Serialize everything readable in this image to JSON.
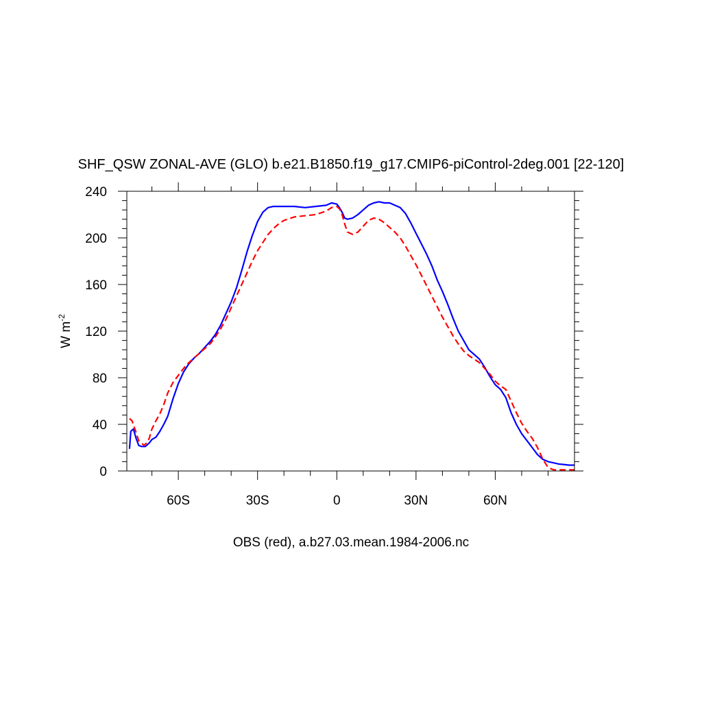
{
  "chart_data": {
    "type": "line",
    "title": "SHF_QSW ZONAL-AVE (GLO) b.e21.B1850.f19_g17.CMIP6-piControl-2deg.001 [22-120]",
    "subtitle": "OBS (red), a.b27.03.mean.1984-2006.nc",
    "ylabel_main": "W m",
    "ylabel_sup": "-2",
    "xlim": [
      -79.5,
      90
    ],
    "ylim": [
      0,
      240
    ],
    "x_ticks": [
      {
        "value": -60,
        "label": "60S"
      },
      {
        "value": -30,
        "label": "30S"
      },
      {
        "value": 0,
        "label": "0"
      },
      {
        "value": 30,
        "label": "30N"
      },
      {
        "value": 60,
        "label": "60N"
      }
    ],
    "x_minor_ticks": [
      -70,
      -50,
      -40,
      -20,
      -10,
      10,
      20,
      40,
      50,
      70,
      80
    ],
    "y_ticks": [
      {
        "value": 0,
        "label": "0"
      },
      {
        "value": 40,
        "label": "40"
      },
      {
        "value": 80,
        "label": "80"
      },
      {
        "value": 120,
        "label": "120"
      },
      {
        "value": 160,
        "label": "160"
      },
      {
        "value": 200,
        "label": "200"
      },
      {
        "value": 240,
        "label": "240"
      }
    ],
    "y_minor_step": 8,
    "series": [
      {
        "color": "#0000ff",
        "dash": "solid",
        "points": [
          [
            -78.5,
            19
          ],
          [
            -78,
            34
          ],
          [
            -77,
            36
          ],
          [
            -76,
            28
          ],
          [
            -75,
            22
          ],
          [
            -74,
            21
          ],
          [
            -72.5,
            21
          ],
          [
            -71,
            24
          ],
          [
            -70,
            27
          ],
          [
            -68.5,
            29
          ],
          [
            -67,
            34
          ],
          [
            -65.5,
            40
          ],
          [
            -64,
            47
          ],
          [
            -62,
            62
          ],
          [
            -60,
            75
          ],
          [
            -58,
            85
          ],
          [
            -56,
            92
          ],
          [
            -54,
            97
          ],
          [
            -52,
            101
          ],
          [
            -50,
            106
          ],
          [
            -48,
            111
          ],
          [
            -46,
            117
          ],
          [
            -44,
            125
          ],
          [
            -42,
            135
          ],
          [
            -40,
            145
          ],
          [
            -38,
            157
          ],
          [
            -36,
            172
          ],
          [
            -34,
            188
          ],
          [
            -32,
            202
          ],
          [
            -30,
            214
          ],
          [
            -28,
            222
          ],
          [
            -26,
            226
          ],
          [
            -24,
            227
          ],
          [
            -20,
            227
          ],
          [
            -16,
            227
          ],
          [
            -12,
            226
          ],
          [
            -8,
            227
          ],
          [
            -4,
            228
          ],
          [
            -2,
            230
          ],
          [
            0,
            229
          ],
          [
            1,
            226
          ],
          [
            2,
            222
          ],
          [
            3,
            217
          ],
          [
            4,
            216
          ],
          [
            6,
            217
          ],
          [
            8,
            220
          ],
          [
            10,
            224
          ],
          [
            12,
            228
          ],
          [
            14,
            230
          ],
          [
            16,
            231
          ],
          [
            18,
            230
          ],
          [
            20,
            230
          ],
          [
            22,
            228
          ],
          [
            24,
            226
          ],
          [
            26,
            221
          ],
          [
            28,
            213
          ],
          [
            30,
            204
          ],
          [
            32,
            195
          ],
          [
            34,
            186
          ],
          [
            36,
            176
          ],
          [
            38,
            164
          ],
          [
            40,
            154
          ],
          [
            42,
            143
          ],
          [
            44,
            131
          ],
          [
            46,
            120
          ],
          [
            48,
            112
          ],
          [
            50,
            104
          ],
          [
            52,
            100
          ],
          [
            54,
            96
          ],
          [
            56,
            89
          ],
          [
            58,
            81
          ],
          [
            60,
            74
          ],
          [
            62,
            70
          ],
          [
            64,
            63
          ],
          [
            66,
            50
          ],
          [
            68,
            40
          ],
          [
            70,
            32
          ],
          [
            72,
            26
          ],
          [
            74,
            20
          ],
          [
            76,
            14
          ],
          [
            78,
            10
          ],
          [
            80,
            8
          ],
          [
            82,
            7
          ],
          [
            84,
            6
          ],
          [
            86,
            5.5
          ],
          [
            88,
            5
          ],
          [
            90,
            5
          ]
        ]
      },
      {
        "color": "#ff0000",
        "dash": "dashed",
        "points": [
          [
            -78.5,
            45
          ],
          [
            -77.5,
            43
          ],
          [
            -76,
            33
          ],
          [
            -75,
            26
          ],
          [
            -74,
            24
          ],
          [
            -73,
            22
          ],
          [
            -72,
            24
          ],
          [
            -71,
            28
          ],
          [
            -70,
            36
          ],
          [
            -68.5,
            43
          ],
          [
            -67,
            49
          ],
          [
            -65.5,
            57
          ],
          [
            -64,
            67
          ],
          [
            -62,
            76
          ],
          [
            -60,
            82
          ],
          [
            -58,
            88
          ],
          [
            -56,
            93
          ],
          [
            -54,
            97
          ],
          [
            -52,
            101
          ],
          [
            -50,
            105
          ],
          [
            -48,
            109
          ],
          [
            -46,
            115
          ],
          [
            -44,
            122
          ],
          [
            -42,
            130
          ],
          [
            -40,
            140
          ],
          [
            -38,
            150
          ],
          [
            -36,
            160
          ],
          [
            -34,
            170
          ],
          [
            -32,
            180
          ],
          [
            -30,
            189
          ],
          [
            -28,
            196
          ],
          [
            -26,
            203
          ],
          [
            -24,
            208
          ],
          [
            -22,
            212
          ],
          [
            -20,
            215
          ],
          [
            -16,
            218
          ],
          [
            -12,
            219
          ],
          [
            -8,
            220
          ],
          [
            -4,
            223
          ],
          [
            -2,
            226
          ],
          [
            0,
            227
          ],
          [
            1,
            225
          ],
          [
            2,
            220
          ],
          [
            3,
            212
          ],
          [
            4,
            205
          ],
          [
            6,
            203
          ],
          [
            8,
            205
          ],
          [
            10,
            210
          ],
          [
            12,
            215
          ],
          [
            14,
            217
          ],
          [
            16,
            216
          ],
          [
            18,
            213
          ],
          [
            20,
            209
          ],
          [
            22,
            205
          ],
          [
            24,
            200
          ],
          [
            26,
            193
          ],
          [
            28,
            185
          ],
          [
            30,
            177
          ],
          [
            32,
            168
          ],
          [
            34,
            159
          ],
          [
            36,
            150
          ],
          [
            38,
            141
          ],
          [
            40,
            132
          ],
          [
            42,
            124
          ],
          [
            44,
            116
          ],
          [
            46,
            109
          ],
          [
            48,
            103
          ],
          [
            50,
            99
          ],
          [
            52,
            96
          ],
          [
            54,
            93
          ],
          [
            56,
            88
          ],
          [
            58,
            83
          ],
          [
            60,
            77
          ],
          [
            62,
            73
          ],
          [
            64,
            70
          ],
          [
            66,
            60
          ],
          [
            68,
            50
          ],
          [
            70,
            41
          ],
          [
            72,
            34
          ],
          [
            74,
            28
          ],
          [
            76,
            20
          ],
          [
            78,
            10
          ],
          [
            80,
            3
          ],
          [
            82,
            1
          ],
          [
            84,
            1
          ],
          [
            90,
            1
          ]
        ]
      }
    ]
  }
}
